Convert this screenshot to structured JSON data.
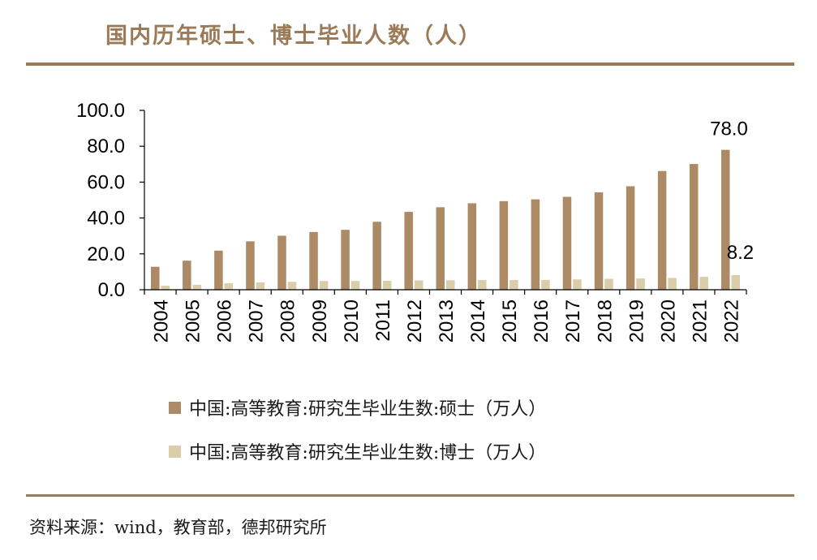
{
  "title": "国内历年硕士、博士毕业人数（人）",
  "source": "资料来源：wind，教育部，德邦研究所",
  "colors": {
    "accent": "#9b7a58",
    "masters": "#ab8a65",
    "doctors": "#dacda9",
    "axis": "#000000"
  },
  "chart_data": {
    "type": "bar",
    "categories": [
      "2004",
      "2005",
      "2006",
      "2007",
      "2008",
      "2009",
      "2010",
      "2011",
      "2012",
      "2013",
      "2014",
      "2015",
      "2016",
      "2017",
      "2018",
      "2019",
      "2020",
      "2021",
      "2022"
    ],
    "series": [
      {
        "name": "中国:高等教育:研究生毕业生数:硕士（万人）",
        "values": [
          12.8,
          16.2,
          21.8,
          27.0,
          30.1,
          32.2,
          33.4,
          37.9,
          43.4,
          46.0,
          48.2,
          49.4,
          50.4,
          51.8,
          54.3,
          57.7,
          66.2,
          70.1,
          78.0
        ]
      },
      {
        "name": "中国:高等教育:研究生毕业生数:博士（万人）",
        "values": [
          2.3,
          2.8,
          3.6,
          4.1,
          4.4,
          4.9,
          4.9,
          5.0,
          5.2,
          5.3,
          5.4,
          5.4,
          5.5,
          5.8,
          6.1,
          6.3,
          6.6,
          7.2,
          8.2
        ]
      }
    ],
    "ylim": [
      0,
      100
    ],
    "yticks": [
      "0.0",
      "20.0",
      "40.0",
      "60.0",
      "80.0",
      "100.0"
    ],
    "annotations": [
      "78.0",
      "8.2"
    ],
    "legend_position": "bottom"
  }
}
